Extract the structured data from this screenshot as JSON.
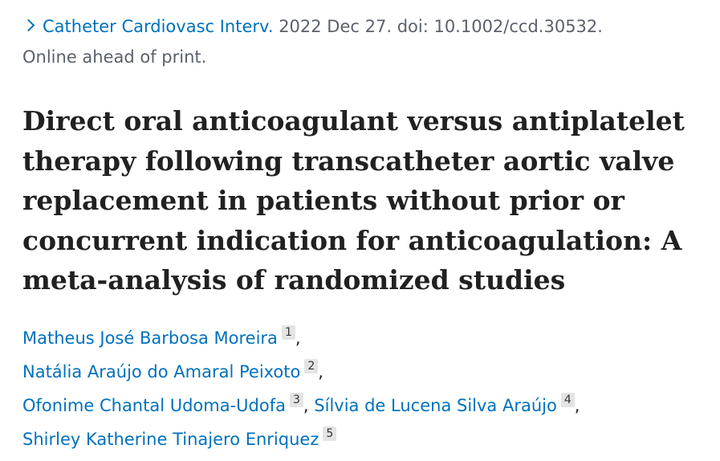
{
  "citation": {
    "journal": "Catheter Cardiovasc Interv.",
    "details": "2022 Dec 27. doi: 10.1002/ccd.30532.",
    "status": "Online ahead of print."
  },
  "title_lines": [
    "Direct oral anticoagulant versus antiplatelet",
    "therapy following transcatheter aortic valve",
    "replacement in patients without prior or",
    "concurrent indication for anticoagulation: A",
    "meta-analysis of randomized studies"
  ],
  "authors": [
    {
      "name": "Matheus José Barbosa Moreira",
      "affiliation": "1",
      "separator": ","
    },
    {
      "name": "Natália Araújo do Amaral Peixoto",
      "affiliation": "2",
      "separator": ","
    },
    {
      "name": "Ofonime Chantal Udoma-Udofa",
      "affiliation": "3",
      "separator": ","
    },
    {
      "name": "Sílvia de Lucena Silva Araújo",
      "affiliation": "4",
      "separator": ","
    },
    {
      "name": "Shirley Katherine Tinajero Enriquez",
      "affiliation": "5"
    }
  ]
}
